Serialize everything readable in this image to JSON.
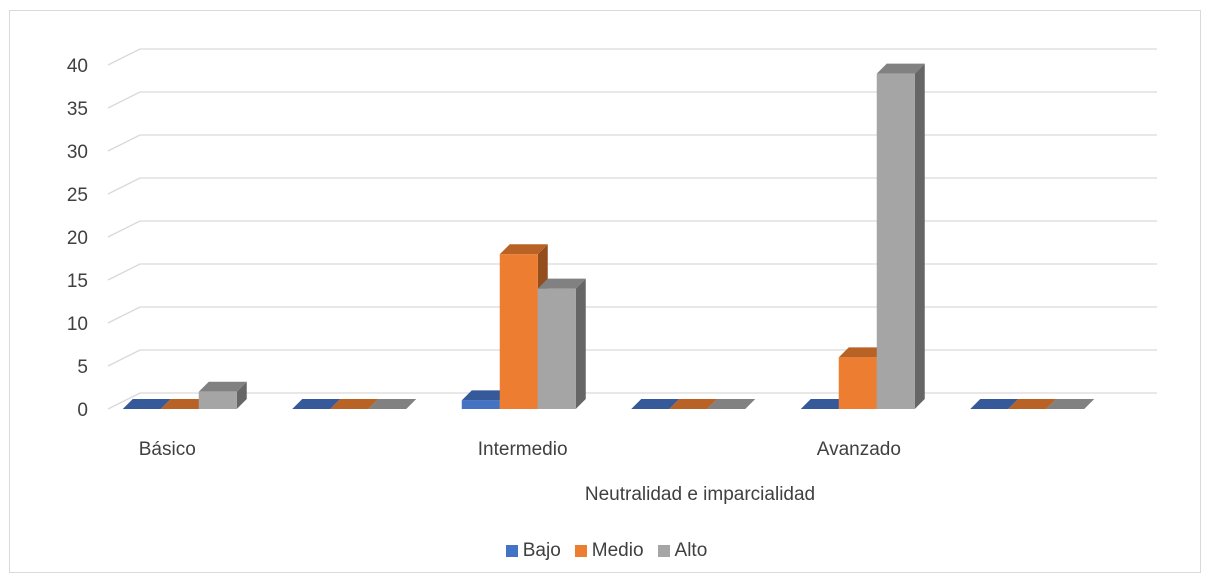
{
  "chart_data": {
    "type": "bar",
    "style": "3d-clustered-column",
    "categories": [
      "Básico",
      "",
      "Intermedio",
      "",
      "Avanzado",
      ""
    ],
    "series": [
      {
        "name": "Bajo",
        "color": "#4472c4",
        "values": [
          0,
          0,
          1,
          0,
          0,
          0
        ]
      },
      {
        "name": "Medio",
        "color": "#ed7d31",
        "values": [
          0,
          0,
          18,
          0,
          6,
          0
        ]
      },
      {
        "name": "Alto",
        "color": "#a5a5a5",
        "values": [
          2,
          0,
          14,
          0,
          39,
          0
        ]
      }
    ],
    "yticks": [
      "0",
      "5",
      "10",
      "15",
      "20",
      "25",
      "30",
      "35",
      "40"
    ],
    "ylim": [
      0,
      40
    ],
    "xlabel": "Neutralidad e imparcialidad",
    "ylabel": "",
    "grid": true,
    "legend_position": "bottom"
  }
}
